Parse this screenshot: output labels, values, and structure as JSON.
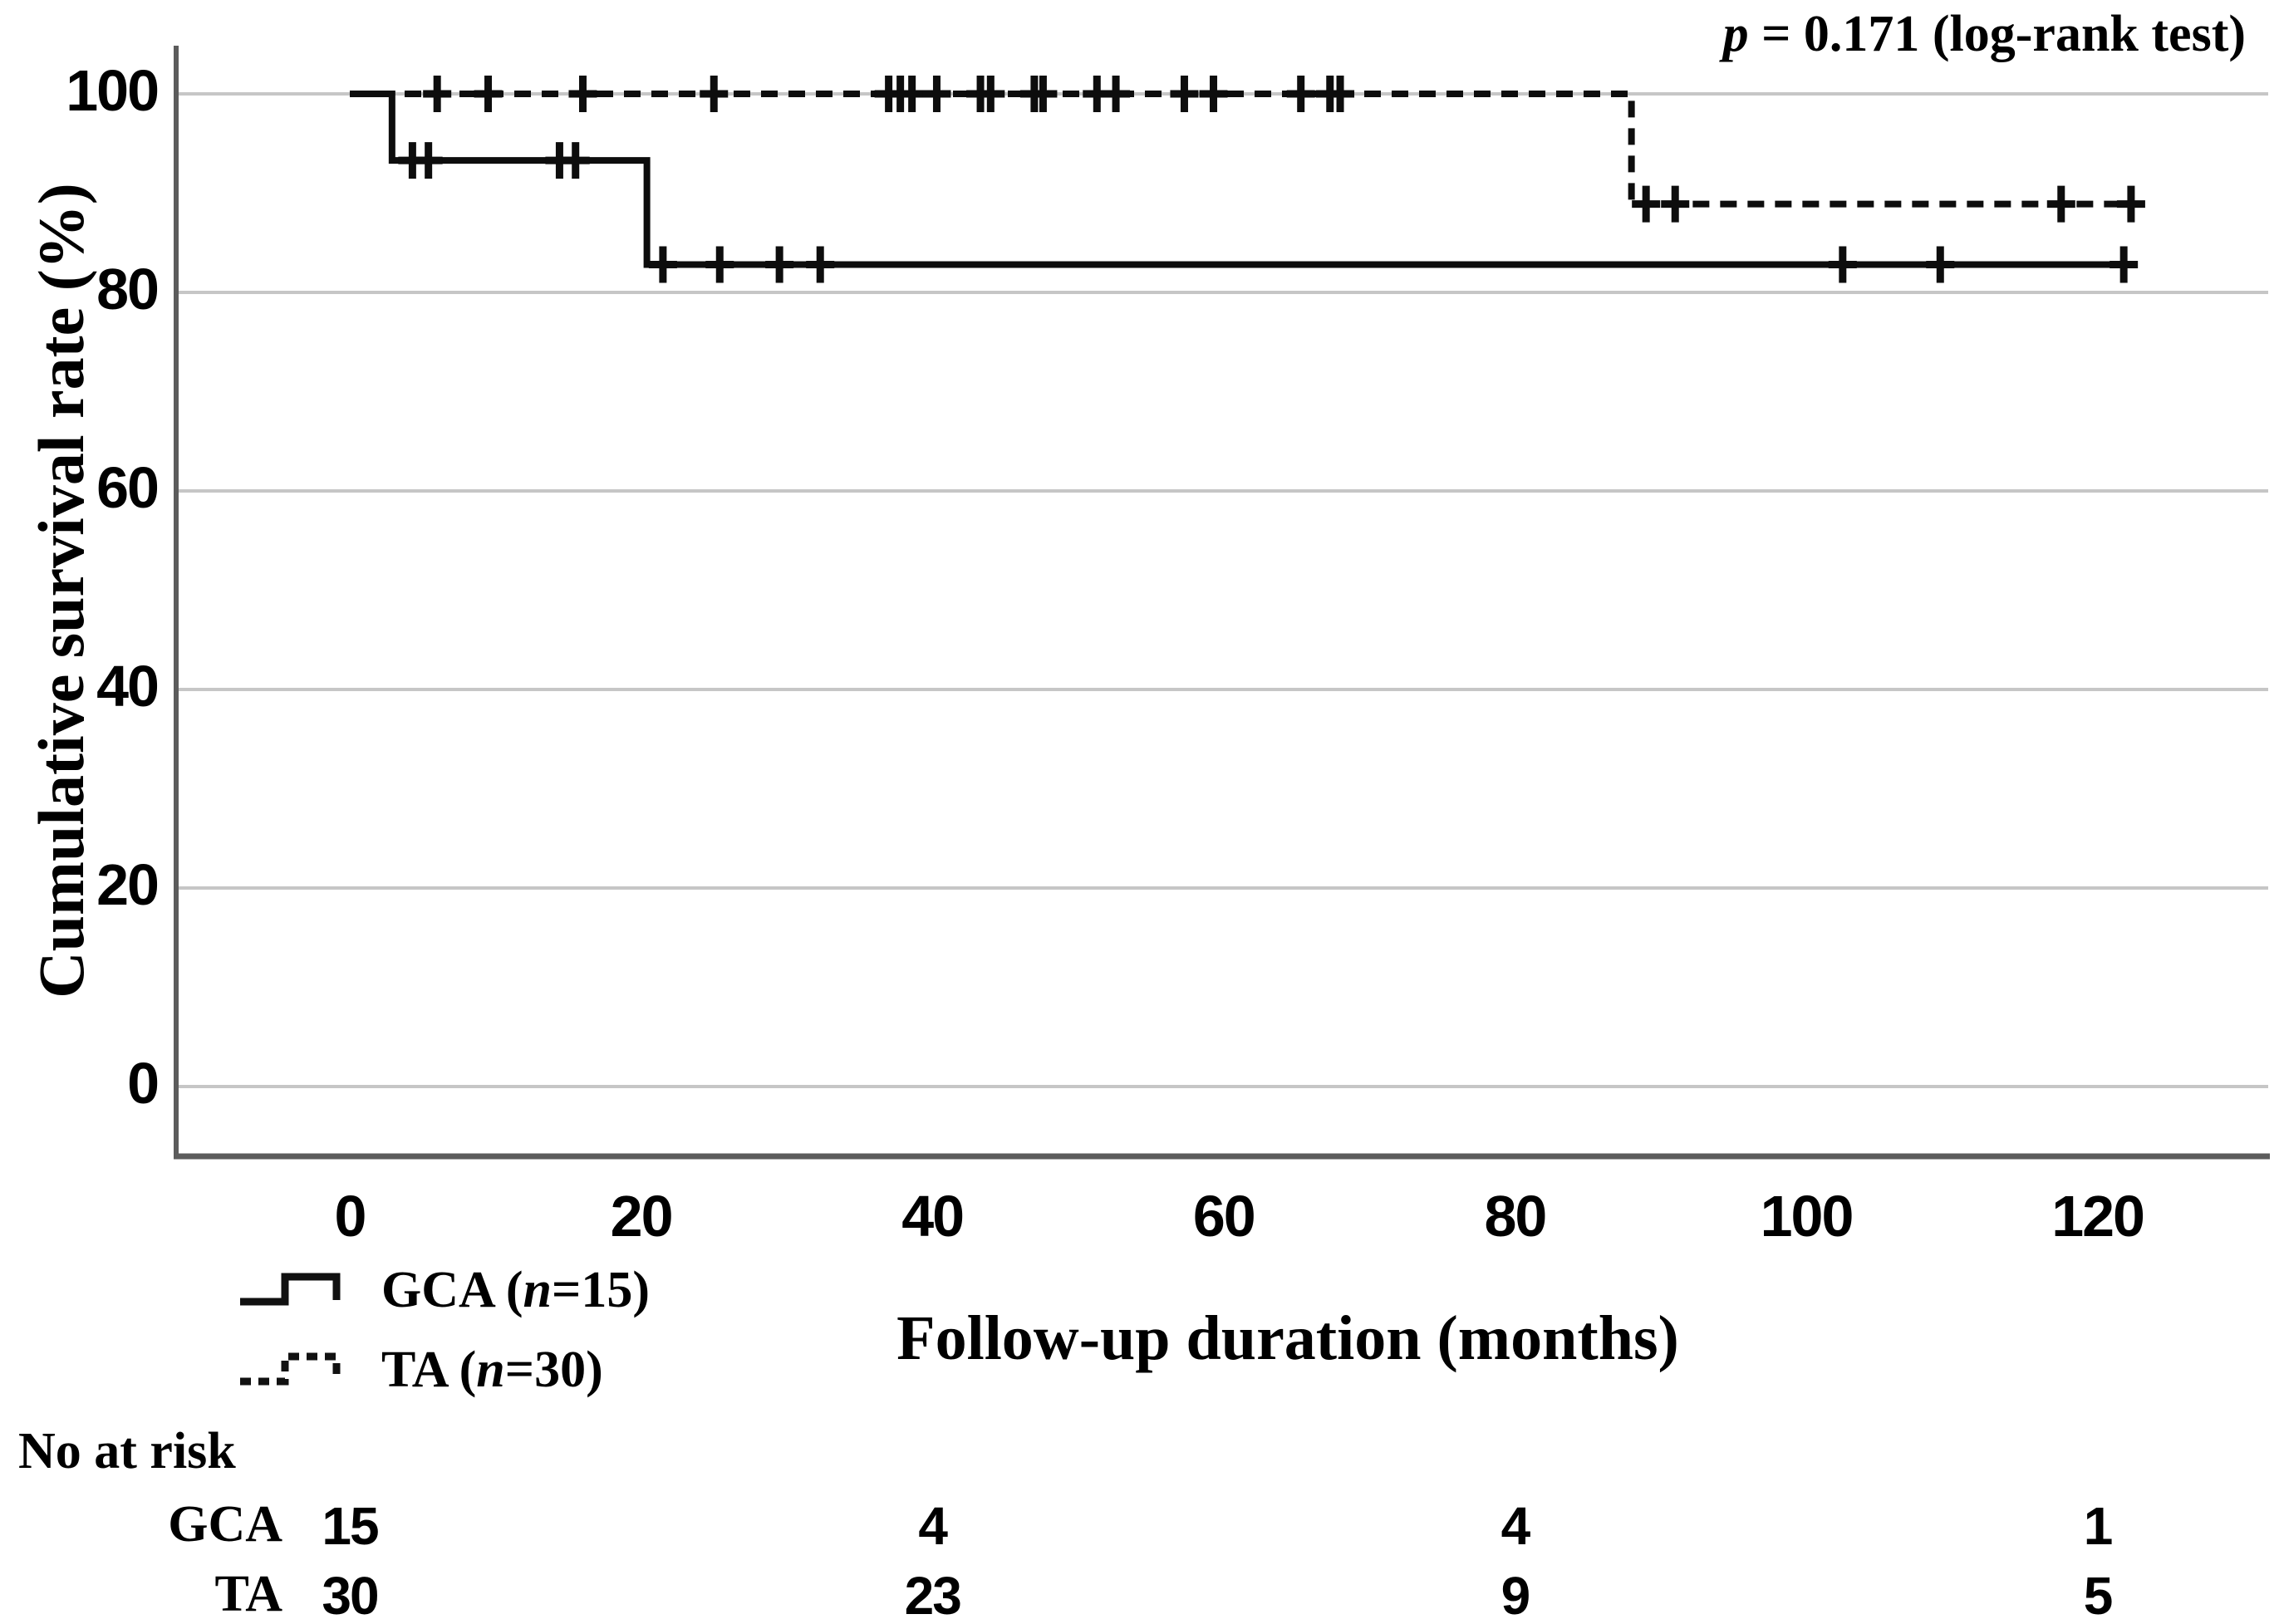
{
  "annotation": {
    "p_italic": "p",
    "p_rest": " = 0.171 (log-rank test)"
  },
  "axes": {
    "y_label": "Cumulative survival rate (%)",
    "x_label": "Follow-up duration (months)",
    "y_ticks": [
      "100",
      "80",
      "60",
      "40",
      "20",
      "0"
    ],
    "x_ticks": [
      "0",
      "20",
      "40",
      "60",
      "80",
      "100",
      "120"
    ]
  },
  "legend": [
    {
      "prefix": "GCA (",
      "n_italic": "n",
      "suffix": "=15)",
      "line_style": "solid"
    },
    {
      "prefix": "TA (",
      "n_italic": "n",
      "suffix": "=30)",
      "line_style": "dashed"
    }
  ],
  "risk_table": {
    "header": "No at risk",
    "time_points": [
      0,
      40,
      80,
      120
    ],
    "rows": [
      {
        "label": "GCA",
        "counts": [
          "15",
          "4",
          "4",
          "1"
        ]
      },
      {
        "label": "TA",
        "counts": [
          "30",
          "23",
          "9",
          "5"
        ]
      }
    ]
  },
  "colors": {
    "curve": "#0d0d0d",
    "gridline": "#c6c6c6",
    "axis": "#5c5c5c"
  },
  "chart_data": {
    "type": "line",
    "subtype": "kaplan-meier-step",
    "title": "",
    "xlabel": "Follow-up duration (months)",
    "ylabel": "Cumulative survival rate (%)",
    "xlim": [
      0,
      132
    ],
    "ylim": [
      0,
      100
    ],
    "x_ticks": [
      0,
      20,
      40,
      60,
      80,
      100,
      120
    ],
    "y_ticks": [
      0,
      20,
      40,
      60,
      80,
      100
    ],
    "grid": "horizontal",
    "legend_position": "below-left",
    "annotation": "p = 0.171 (log-rank test)",
    "series": [
      {
        "name": "GCA (n=15)",
        "style": "solid",
        "color": "#0d0d0d",
        "steps": [
          [
            0,
            100
          ],
          [
            2.9,
            100
          ],
          [
            2.9,
            93.3
          ],
          [
            20.4,
            93.3
          ],
          [
            20.4,
            82.8
          ],
          [
            122,
            82.8
          ]
        ],
        "censors": [
          [
            4.3,
            93.3
          ],
          [
            5.4,
            93.3
          ],
          [
            14.4,
            93.3
          ],
          [
            15.5,
            93.3
          ],
          [
            21.5,
            82.8
          ],
          [
            25.4,
            82.8
          ],
          [
            29.5,
            82.8
          ],
          [
            32.3,
            82.8
          ],
          [
            102.5,
            82.8
          ],
          [
            109.2,
            82.8
          ],
          [
            121.8,
            82.8
          ]
        ]
      },
      {
        "name": "TA (n=30)",
        "style": "dashed",
        "color": "#0d0d0d",
        "steps": [
          [
            0,
            100
          ],
          [
            88,
            100
          ],
          [
            88,
            88.9
          ],
          [
            122.5,
            88.9
          ]
        ],
        "censors": [
          [
            6,
            100
          ],
          [
            9.5,
            100
          ],
          [
            16,
            100
          ],
          [
            25,
            100
          ],
          [
            37,
            100
          ],
          [
            37.8,
            100
          ],
          [
            38.6,
            100
          ],
          [
            40.3,
            100
          ],
          [
            43.3,
            100
          ],
          [
            44,
            100
          ],
          [
            47,
            100
          ],
          [
            47.6,
            100
          ],
          [
            51.3,
            100
          ],
          [
            52.6,
            100
          ],
          [
            57.3,
            100
          ],
          [
            59.3,
            100
          ],
          [
            65.3,
            100
          ],
          [
            67.3,
            100
          ],
          [
            68,
            100
          ],
          [
            89,
            88.9
          ],
          [
            91,
            88.9
          ],
          [
            117.5,
            88.9
          ],
          [
            122.3,
            88.9
          ]
        ]
      }
    ],
    "number_at_risk": {
      "times": [
        0,
        40,
        80,
        120
      ],
      "GCA": [
        15,
        4,
        4,
        1
      ],
      "TA": [
        30,
        23,
        9,
        5
      ]
    }
  }
}
